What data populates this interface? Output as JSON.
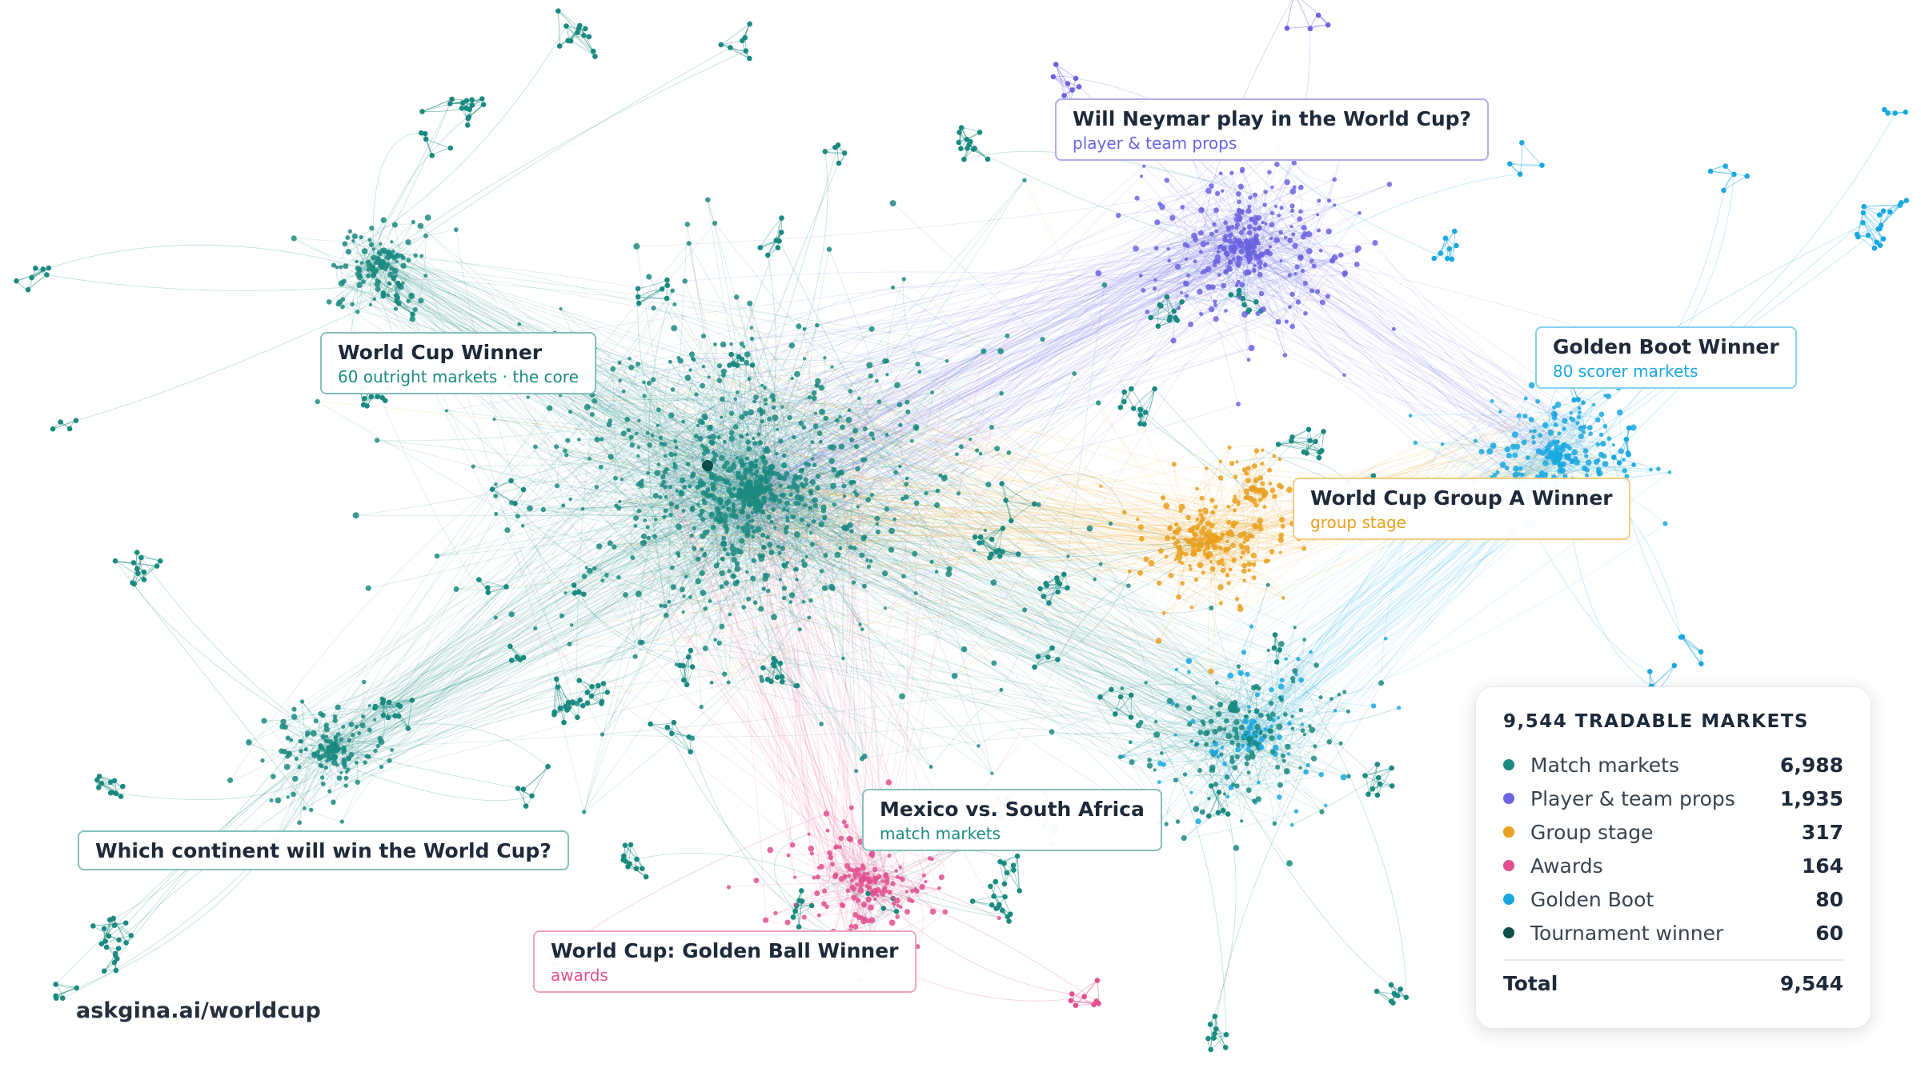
{
  "labels": [
    {
      "title": "World Cup Winner",
      "subtitle": "60 outright markets · the core",
      "color": "#1b8a80"
    },
    {
      "title": "Will Neymar play in the World Cup?",
      "subtitle": "player & team props",
      "color": "#6b63e0"
    },
    {
      "title": "Golden Boot Winner",
      "subtitle": "80 scorer markets",
      "color": "#1aa8e0"
    },
    {
      "title": "World Cup Group A Winner",
      "subtitle": "group stage",
      "color": "#e9a01e"
    },
    {
      "title": "Mexico vs. South Africa",
      "subtitle": "match markets",
      "color": "#1b8a80"
    },
    {
      "title": "Which continent will win the World Cup?",
      "color": "#1b8a80"
    },
    {
      "title": "World Cup: Golden Ball Winner",
      "subtitle": "awards",
      "color": "#e0508f"
    }
  ],
  "footer": "askgina.ai/worldcup",
  "legend": {
    "title": "9,544 TRADABLE MARKETS",
    "items": [
      {
        "name": "Match markets",
        "count": "6,988",
        "color": "#1b8a80"
      },
      {
        "name": "Player & team props",
        "count": "1,935",
        "color": "#6b63e0"
      },
      {
        "name": "Group stage",
        "count": "317",
        "color": "#e9a01e"
      },
      {
        "name": "Awards",
        "count": "164",
        "color": "#e0508f"
      },
      {
        "name": "Golden Boot",
        "count": "80",
        "color": "#1aa8e0"
      },
      {
        "name": "Tournament winner",
        "count": "60",
        "color": "#0d4f48"
      }
    ],
    "total_label": "Total",
    "total": "9,544"
  }
}
